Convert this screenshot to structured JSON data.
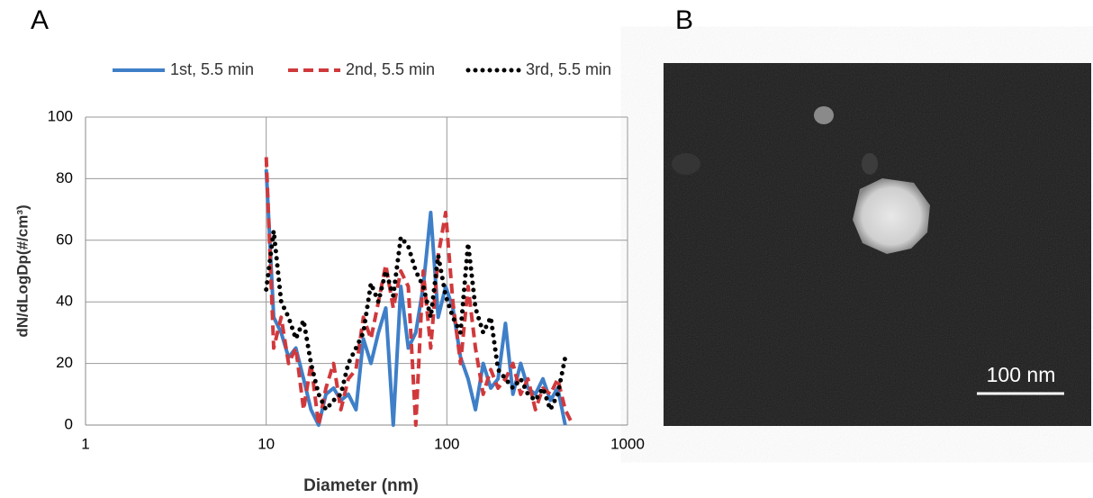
{
  "panel_labels": [
    "A",
    "B"
  ],
  "image": {
    "scale_bar_label": "100 nm"
  },
  "chart_data": {
    "type": "line",
    "xlabel": "Diameter (nm)",
    "ylabel": "dN/dLogDp(#/cm³)",
    "x": [
      10,
      11,
      12.1,
      13.3,
      14.6,
      16.1,
      17.7,
      19.5,
      21.4,
      23.6,
      25.9,
      28.5,
      31.4,
      34.5,
      38,
      41.8,
      45.9,
      50.5,
      55.6,
      61.2,
      67.3,
      74,
      81.4,
      89.5,
      98.5,
      108,
      119,
      131,
      144,
      159,
      175,
      192,
      211,
      232,
      256,
      281,
      309,
      340,
      374,
      411,
      452,
      498
    ],
    "series": [
      {
        "name": "1st, 5.5 min",
        "color": "#3f7fc8",
        "style": "solid",
        "values": [
          83,
          35,
          30,
          22,
          25,
          15,
          5,
          0,
          10,
          12,
          8,
          10,
          5,
          28,
          20,
          30,
          38,
          0,
          45,
          25,
          30,
          45,
          69,
          35,
          45,
          38,
          22,
          15,
          5,
          20,
          12,
          15,
          33,
          10,
          20,
          12,
          10,
          15,
          8,
          12,
          0,
          null
        ]
      },
      {
        "name": "2nd, 5.5 min",
        "color": "#d0393c",
        "style": "dashed",
        "values": [
          87,
          25,
          35,
          20,
          25,
          5,
          20,
          0,
          12,
          20,
          5,
          15,
          18,
          35,
          28,
          40,
          52,
          38,
          50,
          45,
          0,
          50,
          25,
          55,
          69,
          40,
          20,
          45,
          25,
          10,
          18,
          12,
          15,
          20,
          10,
          15,
          5,
          12,
          10,
          15,
          5,
          0
        ]
      },
      {
        "name": "3rd, 5.5 min",
        "color": "#000000",
        "style": "dotted",
        "values": [
          44,
          63,
          40,
          35,
          28,
          34,
          20,
          10,
          5,
          8,
          10,
          20,
          25,
          30,
          46,
          40,
          50,
          42,
          61,
          58,
          50,
          45,
          35,
          55,
          42,
          35,
          30,
          59,
          38,
          30,
          35,
          18,
          15,
          12,
          15,
          10,
          8,
          12,
          5,
          10,
          22,
          null
        ]
      }
    ],
    "xlog": true,
    "xlim": [
      1,
      1000
    ],
    "xticks": [
      1,
      10,
      100,
      1000
    ],
    "ylim": [
      0,
      100
    ],
    "yticks": [
      0,
      20,
      40,
      60,
      80,
      100
    ],
    "grid": true,
    "legend": "top"
  }
}
